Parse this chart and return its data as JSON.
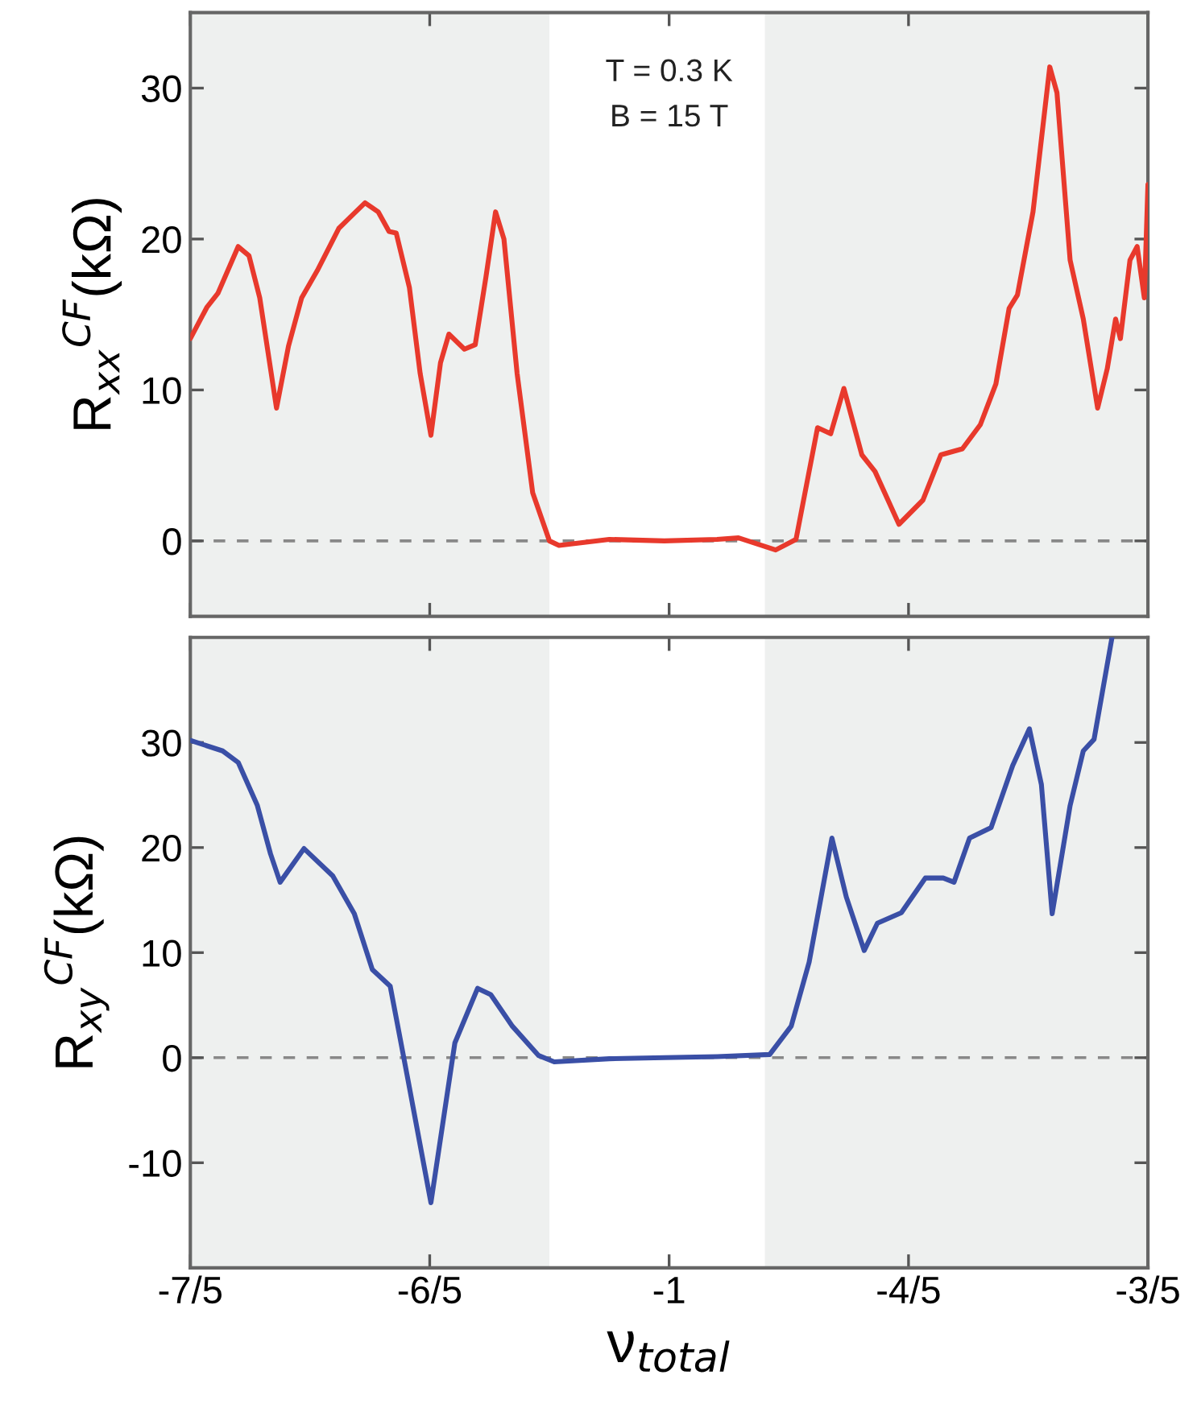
{
  "chart_data": [
    {
      "type": "line",
      "ylabel": "R$_{xx}$$^{CF}$(kΩ)",
      "annotations": [
        "T = 0.3 K",
        "B = 15 T"
      ],
      "xlim": [
        -1.4,
        -0.6
      ],
      "xticks": [
        -1.4,
        -1.2,
        -1.0,
        -0.8,
        -0.6
      ],
      "ylim": [
        -5,
        35
      ],
      "yticks": [
        0,
        10,
        20,
        30
      ],
      "tick_labels": "y",
      "grid": false,
      "legend": false,
      "bands": [
        {
          "axis": "x",
          "from": -1.4,
          "to": -1.1,
          "color": "#eef0ef"
        },
        {
          "axis": "x",
          "from": -0.92,
          "to": -0.6,
          "color": "#eef0ef"
        }
      ],
      "ref_lines": [
        {
          "axis": "y",
          "value": 0,
          "color": "#888888",
          "line_style": "dashed"
        }
      ],
      "series": [
        {
          "color": "#e8392c",
          "x": [
            -1.4,
            -1.386,
            -1.377,
            -1.36,
            -1.351,
            -1.342,
            -1.328,
            -1.318,
            -1.307,
            -1.294,
            -1.276,
            -1.267,
            -1.254,
            -1.243,
            -1.234,
            -1.228,
            -1.217,
            -1.208,
            -1.199,
            -1.191,
            -1.184,
            -1.171,
            -1.162,
            -1.153,
            -1.145,
            -1.138,
            -1.127,
            -1.114,
            -1.1,
            -1.092,
            -1.05,
            -1.004,
            -0.96,
            -0.942,
            -0.911,
            -0.894,
            -0.876,
            -0.865,
            -0.854,
            -0.839,
            -0.828,
            -0.808,
            -0.788,
            -0.773,
            -0.755,
            -0.74,
            -0.727,
            -0.716,
            -0.709,
            -0.696,
            -0.682,
            -0.676,
            -0.665,
            -0.654,
            -0.642,
            -0.634,
            -0.627,
            -0.623,
            -0.615,
            -0.609,
            -0.603,
            -0.6
          ],
          "values": [
            13.4,
            15.5,
            16.4,
            19.5,
            18.9,
            16.1,
            8.8,
            12.9,
            16.1,
            17.9,
            20.7,
            21.4,
            22.4,
            21.8,
            20.5,
            20.4,
            16.8,
            11.1,
            7.0,
            11.8,
            13.7,
            12.7,
            13.0,
            17.5,
            21.8,
            20.0,
            11.1,
            3.2,
            0,
            -0.3,
            0.1,
            0,
            0.1,
            0.2,
            -0.6,
            0.1,
            7.5,
            7.1,
            10.1,
            5.7,
            4.6,
            1.1,
            2.7,
            5.7,
            6.1,
            7.7,
            10.4,
            15.4,
            16.3,
            21.8,
            31.4,
            29.7,
            18.6,
            14.7,
            8.8,
            11.4,
            14.7,
            13.4,
            18.6,
            19.5,
            16.1,
            23.6
          ]
        }
      ]
    },
    {
      "type": "line",
      "ylabel": "R$_{xy}$$^{CF}$(kΩ)",
      "xlabel": "ν$_{total}$",
      "xlim": [
        -1.4,
        -0.6
      ],
      "xticks": [
        {
          "value": -1.4,
          "label": "-7/5"
        },
        {
          "value": -1.2,
          "label": "-6/5"
        },
        {
          "value": -1.0,
          "label": "-1"
        },
        {
          "value": -0.8,
          "label": "-4/5"
        },
        {
          "value": -0.6,
          "label": "-3/5"
        }
      ],
      "ylim": [
        -20,
        40
      ],
      "yticks": [
        -10,
        0,
        10,
        20,
        30
      ],
      "grid": false,
      "legend": false,
      "bands": [
        {
          "axis": "x",
          "from": -1.4,
          "to": -1.1,
          "color": "#eef0ef"
        },
        {
          "axis": "x",
          "from": -0.92,
          "to": -0.6,
          "color": "#eef0ef"
        }
      ],
      "ref_lines": [
        {
          "axis": "y",
          "value": 0,
          "color": "#888888",
          "line_style": "dashed"
        }
      ],
      "series": [
        {
          "color": "#3a4fa6",
          "x": [
            -1.4,
            -1.373,
            -1.36,
            -1.344,
            -1.333,
            -1.325,
            -1.305,
            -1.281,
            -1.263,
            -1.248,
            -1.233,
            -1.219,
            -1.199,
            -1.179,
            -1.16,
            -1.149,
            -1.131,
            -1.109,
            -1.096,
            -1.05,
            -1.004,
            -0.96,
            -0.916,
            -0.898,
            -0.883,
            -0.864,
            -0.852,
            -0.837,
            -0.826,
            -0.806,
            -0.786,
            -0.771,
            -0.762,
            -0.749,
            -0.731,
            -0.713,
            -0.699,
            -0.689,
            -0.68,
            -0.665,
            -0.654,
            -0.645,
            -0.63
          ],
          "values": [
            30.2,
            29.2,
            28.1,
            24.0,
            19.4,
            16.7,
            19.9,
            17.3,
            13.7,
            8.4,
            6.8,
            -1.6,
            -13.8,
            1.4,
            6.6,
            6.0,
            3.0,
            0.2,
            -0.4,
            -0.1,
            0,
            0.1,
            0.3,
            3.0,
            9.1,
            20.9,
            15.3,
            10.2,
            12.8,
            13.8,
            17.1,
            17.1,
            16.7,
            20.9,
            21.9,
            27.8,
            31.3,
            26.0,
            13.7,
            24.0,
            29.2,
            30.3,
            40.0
          ]
        }
      ]
    }
  ]
}
